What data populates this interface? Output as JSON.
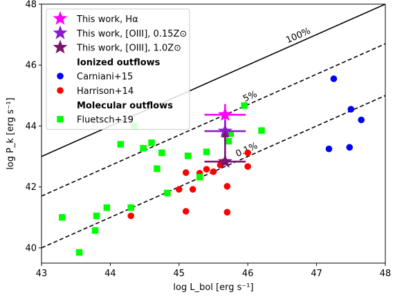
{
  "chart_data": {
    "type": "scatter",
    "xlabel": "log L_bol [erg s⁻¹]",
    "ylabel": "log P_k [erg s⁻¹]",
    "xlim": [
      43,
      48
    ],
    "ylim": [
      39.5,
      48
    ],
    "xticks": [
      "43",
      "44",
      "45",
      "46",
      "47",
      "48"
    ],
    "yticks": [
      "40",
      "42",
      "44",
      "46",
      "48"
    ],
    "grid": false,
    "legend_position": "top-left",
    "reference_lines": [
      {
        "label": "100%",
        "x": [
          43,
          48
        ],
        "y": [
          43.0,
          48.0
        ],
        "style": "solid"
      },
      {
        "label": "5%",
        "x": [
          43,
          48
        ],
        "y": [
          41.7,
          46.7
        ],
        "style": "dashed"
      },
      {
        "label": "0.1%",
        "x": [
          43,
          48
        ],
        "y": [
          40.0,
          45.0
        ],
        "style": "dashed"
      }
    ],
    "legend": {
      "entries": [
        {
          "kind": "star",
          "color": "#ff00ff",
          "label": "This work, Hα"
        },
        {
          "kind": "star",
          "color": "#8b1ccc",
          "label": "This work, [OIII], 0.15Z⊙"
        },
        {
          "kind": "star",
          "color": "#7a1470",
          "label": "This work, [OIII], 1.0Z⊙"
        },
        {
          "kind": "heading",
          "label": "Ionized outflows"
        },
        {
          "kind": "circle",
          "color": "#0000ff",
          "label": "Carniani+15"
        },
        {
          "kind": "circle",
          "color": "#ff0000",
          "label": "Harrison+14"
        },
        {
          "kind": "heading",
          "label": "Molecular outflows"
        },
        {
          "kind": "square",
          "color": "#00ff00",
          "label": "Fluetsch+19"
        }
      ]
    },
    "series": [
      {
        "name": "Carniani+15",
        "marker": "circle",
        "color": "#0000ff",
        "points": [
          [
            47.25,
            45.55
          ],
          [
            47.5,
            44.55
          ],
          [
            47.65,
            44.2
          ],
          [
            47.18,
            43.25
          ],
          [
            47.48,
            43.3
          ]
        ]
      },
      {
        "name": "Harrison+14",
        "marker": "circle",
        "color": "#ff0000",
        "points": [
          [
            44.3,
            41.05
          ],
          [
            45.0,
            41.92
          ],
          [
            45.1,
            42.47
          ],
          [
            45.1,
            41.2
          ],
          [
            45.2,
            41.92
          ],
          [
            45.3,
            42.45
          ],
          [
            45.4,
            42.58
          ],
          [
            45.5,
            42.5
          ],
          [
            45.6,
            42.72
          ],
          [
            45.65,
            42.82
          ],
          [
            45.7,
            42.02
          ],
          [
            45.7,
            41.17
          ],
          [
            46.0,
            43.12
          ],
          [
            46.0,
            42.67
          ]
        ]
      },
      {
        "name": "Fluetsch+19",
        "marker": "square",
        "color": "#00ff00",
        "points": [
          [
            43.3,
            41.0
          ],
          [
            43.55,
            39.85
          ],
          [
            43.78,
            40.57
          ],
          [
            43.8,
            41.05
          ],
          [
            43.95,
            41.32
          ],
          [
            44.15,
            43.4
          ],
          [
            44.3,
            41.32
          ],
          [
            44.35,
            44.0
          ],
          [
            44.48,
            43.27
          ],
          [
            44.6,
            43.45
          ],
          [
            44.68,
            42.6
          ],
          [
            44.75,
            43.12
          ],
          [
            44.83,
            41.8
          ],
          [
            45.13,
            43.02
          ],
          [
            45.3,
            42.32
          ],
          [
            45.4,
            43.15
          ],
          [
            45.72,
            43.5
          ],
          [
            45.75,
            43.75
          ],
          [
            45.95,
            44.67
          ],
          [
            46.2,
            43.85
          ]
        ]
      },
      {
        "name": "This work, Hα",
        "marker": "star",
        "color": "#ff00ff",
        "points": [
          [
            45.67,
            44.37
          ]
        ],
        "xerr": [
          0.3
        ],
        "yerr": [
          0.35
        ]
      },
      {
        "name": "This work, [OIII], 0.15Z⊙",
        "marker": "star",
        "color": "#8b1ccc",
        "points": [
          [
            45.67,
            43.83
          ]
        ],
        "xerr": [
          0.3
        ],
        "yerr": [
          0.35
        ]
      },
      {
        "name": "This work, [OIII], 1.0Z⊙",
        "marker": "star",
        "color": "#7a1470",
        "points": [
          [
            45.67,
            42.83
          ]
        ],
        "xerr": [
          0.3
        ],
        "yerr_upper": [
          1.0
        ]
      }
    ]
  }
}
